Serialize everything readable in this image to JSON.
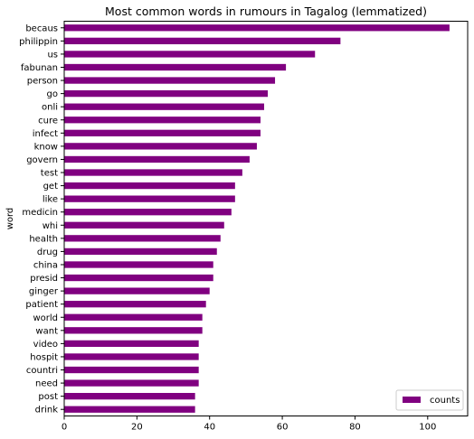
{
  "chart_data": {
    "type": "bar",
    "orientation": "horizontal",
    "title": "Most common words in rumours in Tagalog (lemmatized)",
    "xlabel": "",
    "ylabel": "word",
    "xlim": [
      0,
      111
    ],
    "xticks": [
      0,
      20,
      40,
      60,
      80,
      100
    ],
    "bar_color": "#800080",
    "grid": false,
    "legend_position": "lower-right",
    "categories": [
      "becaus",
      "philippin",
      "us",
      "fabunan",
      "person",
      "go",
      "onli",
      "cure",
      "infect",
      "know",
      "govern",
      "test",
      "get",
      "like",
      "medicin",
      "whi",
      "health",
      "drug",
      "china",
      "presid",
      "ginger",
      "patient",
      "world",
      "want",
      "video",
      "hospit",
      "countri",
      "need",
      "post",
      "drink"
    ],
    "series": [
      {
        "name": "counts",
        "values": [
          106,
          76,
          69,
          61,
          58,
          56,
          55,
          54,
          54,
          53,
          51,
          49,
          47,
          47,
          46,
          44,
          43,
          42,
          41,
          41,
          40,
          39,
          38,
          38,
          37,
          37,
          37,
          37,
          36,
          36
        ]
      }
    ]
  }
}
